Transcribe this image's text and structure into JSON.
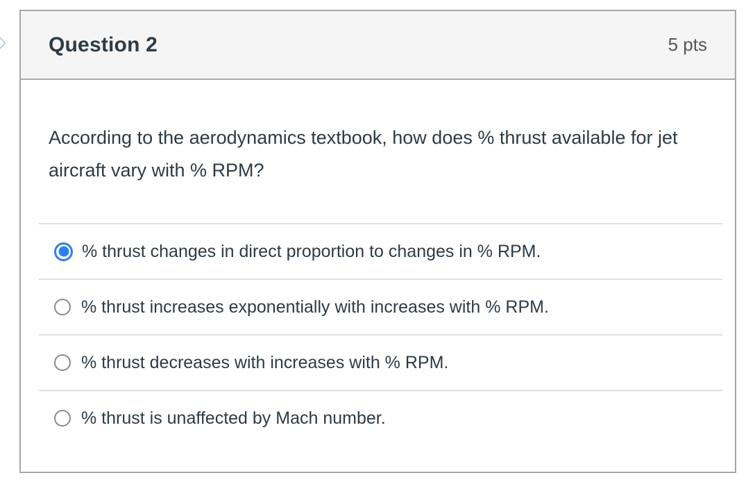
{
  "question": {
    "title": "Question 2",
    "points": "5 pts",
    "text": "According to the aerodynamics textbook, how does % thrust available for jet aircraft vary with % RPM?",
    "options": [
      {
        "label": "% thrust changes in direct proportion to changes in % RPM.",
        "selected": true
      },
      {
        "label": "% thrust increases exponentially with increases with % RPM.",
        "selected": false
      },
      {
        "label": "% thrust decreases with increases with % RPM.",
        "selected": false
      },
      {
        "label": "% thrust is unaffected by Mach number.",
        "selected": false
      }
    ]
  },
  "colors": {
    "accent_blue": "#2e7ff1",
    "header_bg": "#f5f5f5",
    "card_border": "#a7a7a7",
    "divider": "#e0e0e0",
    "text_dark": "#2d3b45",
    "points_gray": "#565656",
    "chevron_blue": "#b7cee8"
  },
  "icons": {
    "edge_chevron": "chevron-right-icon"
  }
}
